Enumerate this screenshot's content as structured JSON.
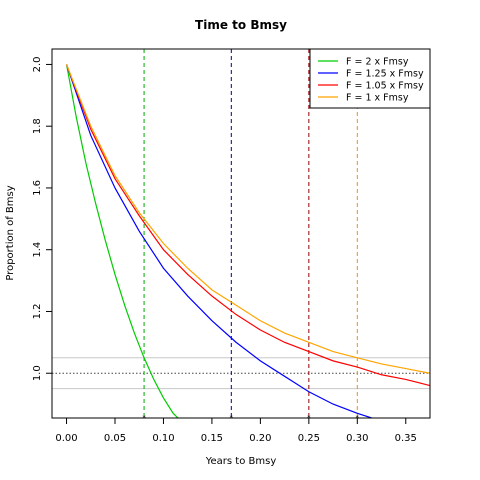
{
  "chart_data": {
    "type": "line",
    "title": "Time to Bmsy",
    "xlabel": "Years to Bmsy",
    "ylabel": "Proportion of Bmsy",
    "xlim": [
      -0.015,
      0.375
    ],
    "ylim": [
      0.855,
      2.05
    ],
    "xticks": [
      "0.00",
      "0.05",
      "0.10",
      "0.15",
      "0.20",
      "0.25",
      "0.30",
      "0.35"
    ],
    "yticks": [
      "1.0",
      "1.2",
      "1.4",
      "1.6",
      "1.8",
      "2.0"
    ],
    "legend_position": "top-right",
    "series": [
      {
        "name": "F = 2 x Fmsy",
        "color": "#00cc00",
        "x": [
          0,
          0.01,
          0.02,
          0.03,
          0.04,
          0.05,
          0.06,
          0.07,
          0.08,
          0.09,
          0.1,
          0.11,
          0.12
        ],
        "y": [
          2.0,
          1.83,
          1.68,
          1.55,
          1.43,
          1.32,
          1.22,
          1.13,
          1.05,
          0.98,
          0.92,
          0.87,
          0.84
        ],
        "time_to_bmsy": 0.08
      },
      {
        "name": "F = 1.25 x Fmsy",
        "color": "#0000ff",
        "x": [
          0,
          0.025,
          0.05,
          0.075,
          0.1,
          0.125,
          0.15,
          0.175,
          0.2,
          0.225,
          0.25,
          0.275,
          0.3,
          0.32
        ],
        "y": [
          2.0,
          1.77,
          1.6,
          1.46,
          1.34,
          1.25,
          1.17,
          1.1,
          1.04,
          0.99,
          0.94,
          0.9,
          0.87,
          0.85
        ],
        "time_to_bmsy": 0.17
      },
      {
        "name": "F = 1.05 x Fmsy",
        "color": "#ff0000",
        "x": [
          0,
          0.025,
          0.05,
          0.075,
          0.1,
          0.125,
          0.15,
          0.175,
          0.2,
          0.225,
          0.25,
          0.275,
          0.3,
          0.325,
          0.35,
          0.375
        ],
        "y": [
          2.0,
          1.79,
          1.63,
          1.51,
          1.4,
          1.32,
          1.25,
          1.19,
          1.14,
          1.1,
          1.07,
          1.04,
          1.02,
          0.995,
          0.98,
          0.96
        ],
        "time_to_bmsy": 0.25
      },
      {
        "name": "F = 1 x Fmsy",
        "color": "#ffa500",
        "x": [
          0,
          0.025,
          0.05,
          0.075,
          0.1,
          0.125,
          0.15,
          0.175,
          0.2,
          0.225,
          0.25,
          0.275,
          0.3,
          0.325,
          0.35,
          0.375
        ],
        "y": [
          2.0,
          1.8,
          1.64,
          1.52,
          1.42,
          1.34,
          1.27,
          1.22,
          1.17,
          1.13,
          1.1,
          1.07,
          1.05,
          1.03,
          1.015,
          1.0
        ],
        "time_to_bmsy": 0.3
      }
    ],
    "reference_lines": {
      "bmsy_level": 1.0,
      "band_lower": 0.95,
      "band_upper": 1.05
    }
  }
}
